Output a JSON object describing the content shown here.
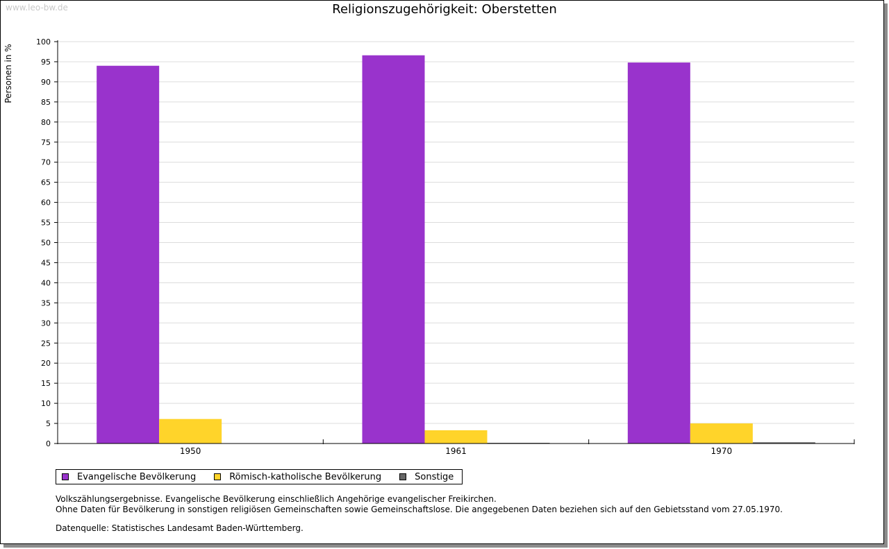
{
  "page": {
    "watermark": "www.leo-bw.de",
    "footnote_line1": "Volkszählungsergebnisse. Evangelische Bevölkerung einschließlich Angehörige evangelischer Freikirchen.",
    "footnote_line2": "Ohne Daten für Bevölkerung in sonstigen religiösen Gemeinschaften sowie Gemeinschaftslose. Die angegebenen Daten beziehen sich auf den Gebietsstand vom 27.05.1970.",
    "source": "Datenquelle: Statistisches Landesamt Baden-Württemberg."
  },
  "chart_data": {
    "type": "bar",
    "title": "Religionszugehörigkeit: Oberstetten",
    "xlabel": "",
    "ylabel": "Personen in %",
    "ylim": [
      0,
      100
    ],
    "ytick_step": 5,
    "grid": true,
    "legend_position": "bottom-left",
    "categories": [
      "1950",
      "1961",
      "1970"
    ],
    "series": [
      {
        "name": "Evangelische Bevölkerung",
        "color": "#9933cc",
        "values": [
          94.0,
          96.6,
          94.8
        ]
      },
      {
        "name": "Römisch-katholische Bevölkerung",
        "color": "#ffd42a",
        "values": [
          6.1,
          3.3,
          5.0
        ]
      },
      {
        "name": "Sonstige",
        "color": "#666666",
        "values": [
          0,
          0.1,
          0.3
        ]
      }
    ]
  }
}
